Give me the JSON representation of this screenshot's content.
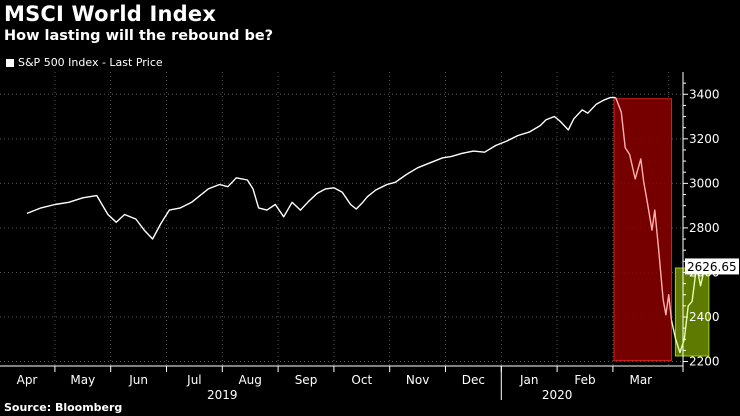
{
  "header": {
    "title": "MSCI World Index",
    "subtitle": "How lasting will the rebound be?"
  },
  "legend": {
    "label": "S&P 500 Index - Last Price"
  },
  "source": "Source: Bloomberg",
  "colors": {
    "line": "#ffffff",
    "drop_box": "#8b0000",
    "rebound_box": "#6f8f00",
    "grid": "#555555"
  },
  "chart_data": {
    "type": "line",
    "title": "MSCI World Index",
    "subtitle": "How lasting will the rebound be?",
    "ylim": [
      2180,
      3500
    ],
    "yticks": [
      2200,
      2400,
      2600,
      2800,
      3000,
      3200,
      3400
    ],
    "month_labels": [
      "Apr",
      "May",
      "Jun",
      "Jul",
      "Aug",
      "Sep",
      "Oct",
      "Nov",
      "Dec",
      "Jan",
      "Feb",
      "Mar"
    ],
    "year_labels": [
      {
        "label": "2019",
        "month_index": 4
      },
      {
        "label": "2020",
        "month_index": 10
      }
    ],
    "last_value_label": "2626.65",
    "series": [
      {
        "values": [
          [
            0.0,
            2865
          ],
          [
            0.25,
            2890
          ],
          [
            0.5,
            2905
          ],
          [
            0.75,
            2915
          ],
          [
            1.0,
            2935
          ],
          [
            1.25,
            2945
          ],
          [
            1.45,
            2860
          ],
          [
            1.6,
            2825
          ],
          [
            1.75,
            2860
          ],
          [
            1.95,
            2840
          ],
          [
            2.1,
            2790
          ],
          [
            2.25,
            2750
          ],
          [
            2.4,
            2820
          ],
          [
            2.55,
            2880
          ],
          [
            2.75,
            2890
          ],
          [
            2.95,
            2915
          ],
          [
            3.1,
            2945
          ],
          [
            3.25,
            2975
          ],
          [
            3.45,
            2995
          ],
          [
            3.6,
            2985
          ],
          [
            3.75,
            3025
          ],
          [
            3.95,
            3015
          ],
          [
            4.05,
            2975
          ],
          [
            4.15,
            2890
          ],
          [
            4.3,
            2880
          ],
          [
            4.45,
            2905
          ],
          [
            4.6,
            2850
          ],
          [
            4.75,
            2915
          ],
          [
            4.9,
            2880
          ],
          [
            5.05,
            2920
          ],
          [
            5.2,
            2955
          ],
          [
            5.35,
            2975
          ],
          [
            5.5,
            2980
          ],
          [
            5.65,
            2960
          ],
          [
            5.8,
            2905
          ],
          [
            5.9,
            2885
          ],
          [
            6.0,
            2910
          ],
          [
            6.1,
            2940
          ],
          [
            6.25,
            2970
          ],
          [
            6.45,
            2995
          ],
          [
            6.6,
            3005
          ],
          [
            6.8,
            3040
          ],
          [
            7.0,
            3070
          ],
          [
            7.2,
            3090
          ],
          [
            7.45,
            3115
          ],
          [
            7.6,
            3120
          ],
          [
            7.8,
            3135
          ],
          [
            8.0,
            3145
          ],
          [
            8.2,
            3140
          ],
          [
            8.4,
            3170
          ],
          [
            8.6,
            3190
          ],
          [
            8.8,
            3215
          ],
          [
            9.0,
            3230
          ],
          [
            9.2,
            3260
          ],
          [
            9.3,
            3285
          ],
          [
            9.45,
            3300
          ],
          [
            9.55,
            3280
          ],
          [
            9.7,
            3240
          ],
          [
            9.8,
            3290
          ],
          [
            9.95,
            3330
          ],
          [
            10.05,
            3315
          ],
          [
            10.2,
            3355
          ],
          [
            10.35,
            3375
          ],
          [
            10.45,
            3385
          ],
          [
            10.55,
            3385
          ]
        ]
      },
      {
        "values": [
          [
            10.55,
            3385
          ],
          [
            10.65,
            3320
          ],
          [
            10.72,
            3160
          ],
          [
            10.8,
            3130
          ],
          [
            10.9,
            3020
          ],
          [
            11.0,
            3110
          ],
          [
            11.05,
            3010
          ],
          [
            11.12,
            2910
          ],
          [
            11.2,
            2790
          ],
          [
            11.25,
            2880
          ],
          [
            11.32,
            2700
          ],
          [
            11.4,
            2480
          ],
          [
            11.45,
            2410
          ],
          [
            11.5,
            2500
          ],
          [
            11.55,
            2385
          ]
        ]
      },
      {
        "values": [
          [
            11.55,
            2385
          ],
          [
            11.62,
            2305
          ],
          [
            11.7,
            2240
          ],
          [
            11.78,
            2300
          ],
          [
            11.85,
            2450
          ],
          [
            11.92,
            2470
          ],
          [
            12.0,
            2630
          ],
          [
            12.07,
            2540
          ],
          [
            12.15,
            2627
          ]
        ]
      }
    ],
    "highlight_boxes": [
      {
        "from_x": 10.52,
        "to_x": 11.55,
        "from_y": 2205,
        "to_y": 3380,
        "style": "drop"
      },
      {
        "from_x": 11.62,
        "to_x": 12.22,
        "from_y": 2225,
        "to_y": 2620,
        "style": "rebound"
      }
    ]
  }
}
